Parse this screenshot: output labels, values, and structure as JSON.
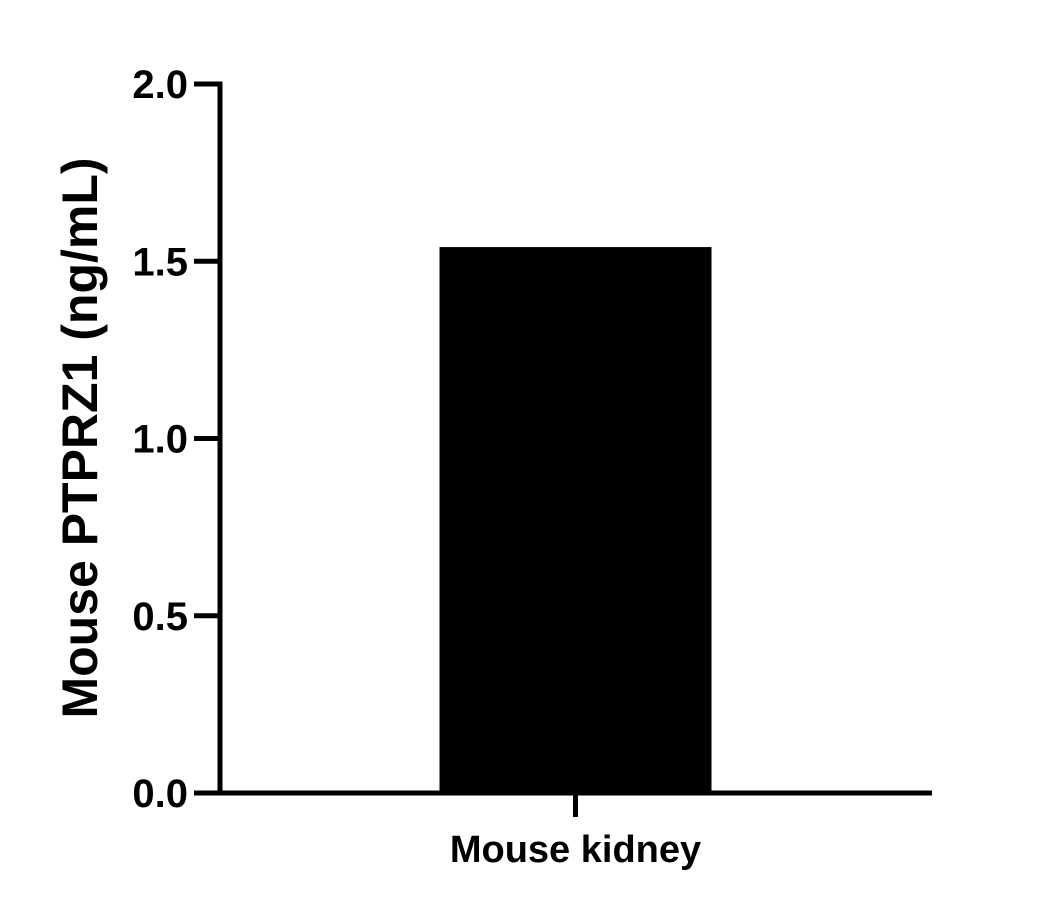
{
  "chart_data": {
    "type": "bar",
    "categories": [
      "Mouse kidney"
    ],
    "values": [
      1.54
    ],
    "title": "",
    "xlabel": "",
    "ylabel": "Mouse PTPRZ1 (ng/mL)",
    "ylim": [
      0,
      2.0
    ],
    "yticks": [
      "0.0",
      "0.5",
      "1.0",
      "1.5",
      "2.0"
    ],
    "grid": false,
    "bar_color": "#000000"
  }
}
